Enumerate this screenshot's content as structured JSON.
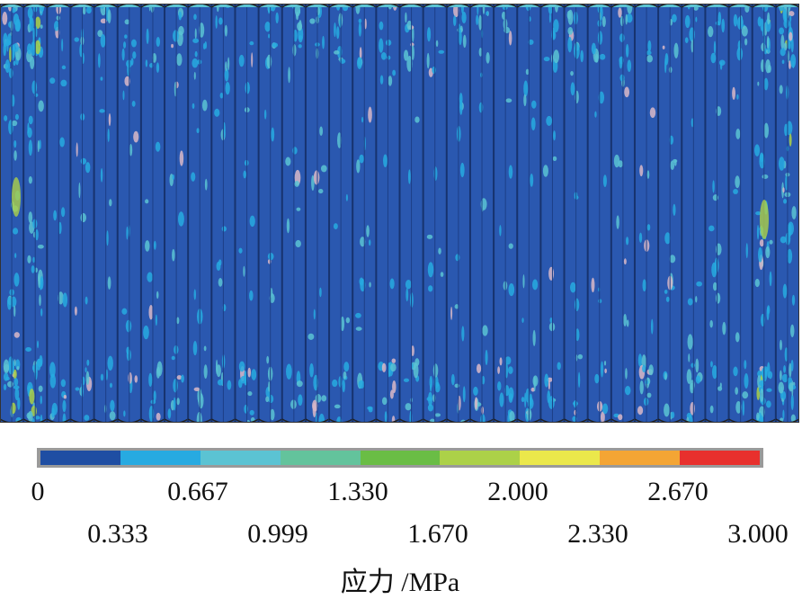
{
  "chart_data": {
    "type": "heatmap",
    "title": "",
    "colorbar": {
      "label": "应力 /MPa",
      "min": 0,
      "max": 3.0,
      "ticks_row1": [
        "0",
        "0.667",
        "1.330",
        "2.000",
        "2.670"
      ],
      "ticks_row2": [
        "0.333",
        "0.999",
        "1.670",
        "2.330",
        "3.000"
      ],
      "tick_values": [
        0,
        0.333,
        0.667,
        0.999,
        1.33,
        1.67,
        2.0,
        2.33,
        2.67,
        3.0
      ],
      "colors": [
        "#1f4ea3",
        "#27aae1",
        "#5bc3d3",
        "#63c39c",
        "#6abd45",
        "#acd148",
        "#ebe84b",
        "#f4a534",
        "#e8302d"
      ]
    },
    "field": {
      "description_values": "stress mostly 0–0.333 MPa, local spots up to ~2.0 MPa near left/right edges",
      "dominant_range": [
        0,
        0.333
      ],
      "peak_range": [
        1.67,
        2.33
      ],
      "corrugation_count": 34
    }
  }
}
